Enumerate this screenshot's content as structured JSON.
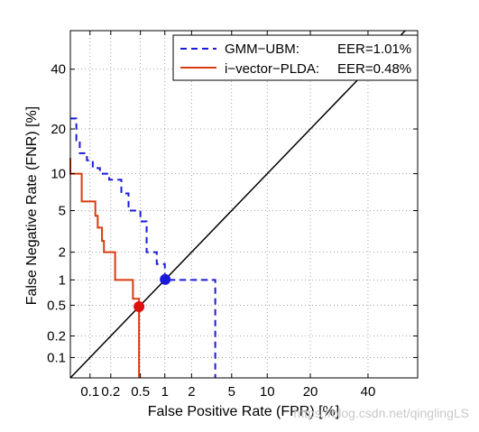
{
  "chart_data": {
    "type": "line",
    "scale": "normal-deviate (DET)",
    "xlabel": "False Positive Rate (FPR) [%]",
    "ylabel": "False Negative Rate (FNR) [%]",
    "xlim": [
      0.05,
      60
    ],
    "ylim": [
      0.05,
      55
    ],
    "xticks": [
      0.1,
      0.2,
      0.5,
      1,
      2,
      5,
      10,
      20,
      40
    ],
    "xtick_labels": [
      "0.1",
      "0.2",
      "0.5",
      "1",
      "2",
      "5",
      "10",
      "20",
      "40"
    ],
    "yticks": [
      0.1,
      0.2,
      0.5,
      1,
      2,
      5,
      10,
      20,
      40
    ],
    "ytick_labels": [
      "0.1",
      "0.2",
      "0.5",
      "1",
      "2",
      "5",
      "10",
      "20",
      "40"
    ],
    "grid": true,
    "legend_position": "top-right",
    "series": [
      {
        "name": "GMM−UBM:",
        "eer_label": "EER=1.01%",
        "color": "#1a1adb",
        "style": "dashed",
        "x": [
          0.05,
          0.062,
          0.062,
          0.07,
          0.07,
          0.09,
          0.09,
          0.11,
          0.11,
          0.14,
          0.14,
          0.19,
          0.19,
          0.28,
          0.28,
          0.35,
          0.35,
          0.5,
          0.5,
          0.6,
          0.6,
          0.8,
          0.8,
          1.0,
          1.0,
          3.5,
          3.5
        ],
        "y": [
          23,
          23,
          17,
          17,
          14,
          14,
          12.5,
          12.5,
          11,
          11,
          10,
          10,
          9,
          9,
          7,
          7,
          5,
          5,
          4,
          4,
          2,
          2,
          1.5,
          1.5,
          1,
          1,
          0.05
        ]
      },
      {
        "name": "i−vector−PLDA:",
        "eer_label": "EER=0.48%",
        "color": "#d83b10",
        "style": "solid",
        "x": [
          0.05,
          0.05,
          0.075,
          0.075,
          0.12,
          0.12,
          0.13,
          0.13,
          0.15,
          0.15,
          0.16,
          0.16,
          0.23,
          0.23,
          0.4,
          0.4,
          0.48,
          0.48
        ],
        "y": [
          13,
          10,
          10,
          6,
          6,
          4.5,
          4.5,
          3.5,
          3.5,
          2.6,
          2.6,
          2,
          2,
          1,
          1,
          0.6,
          0.6,
          0.05
        ]
      }
    ],
    "eer_line": {
      "color": "#000000"
    },
    "eer_points": [
      {
        "series": "GMM−UBM:",
        "x": 1.01,
        "y": 1.01,
        "color": "#1a1adb"
      },
      {
        "series": "i−vector−PLDA:",
        "x": 0.48,
        "y": 0.48,
        "color": "#e01010"
      }
    ]
  },
  "watermark": "https://blog.csdn.net/qinglingLS"
}
